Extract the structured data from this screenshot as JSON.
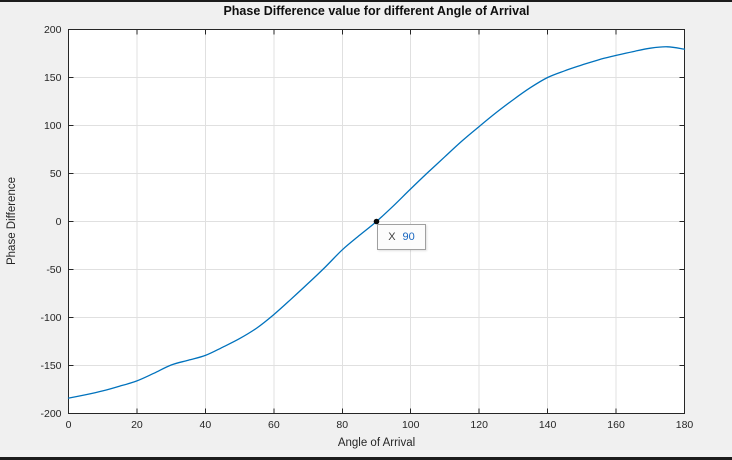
{
  "figure": {
    "background_color": "#f0f0f0",
    "plot_background_color": "#ffffff",
    "axis_color": "#262626",
    "grid_color": "#e0e0e0",
    "window_edge_color": "#1c1c1c"
  },
  "chart_data": {
    "type": "line",
    "title": "Phase Difference value for different Angle of Arrival",
    "xlabel": "Angle of Arrival",
    "ylabel": "Phase Difference",
    "xlim": [
      0,
      180
    ],
    "ylim": [
      -200,
      200
    ],
    "x_ticks": [
      0,
      20,
      40,
      60,
      80,
      100,
      120,
      140,
      160,
      180
    ],
    "y_ticks": [
      -200,
      -150,
      -100,
      -50,
      0,
      50,
      100,
      150,
      200
    ],
    "grid": true,
    "legend": false,
    "series": [
      {
        "name": "Phase Difference",
        "color": "#0072BD",
        "x": [
          0,
          5,
          10,
          15,
          20,
          25,
          30,
          35,
          40,
          45,
          50,
          55,
          60,
          65,
          70,
          75,
          80,
          85,
          90,
          95,
          100,
          105,
          110,
          115,
          120,
          125,
          130,
          135,
          140,
          145,
          150,
          155,
          160,
          165,
          170,
          175,
          180
        ],
        "y": [
          -184,
          -180.5,
          -176.5,
          -171.5,
          -166,
          -158,
          -149.5,
          -144.5,
          -139.5,
          -131,
          -122,
          -111,
          -97,
          -81,
          -64.5,
          -47.5,
          -29.5,
          -14.5,
          0,
          16.5,
          34,
          51,
          67.5,
          84,
          99,
          113.5,
          127,
          139.5,
          150,
          157,
          163,
          168.5,
          173,
          177,
          180.5,
          182,
          179.5
        ]
      }
    ],
    "datatip": {
      "x": 90,
      "y": 0,
      "x_label": "X",
      "x_value": "90",
      "marker_color": "#0a0a0a",
      "value_color": "#1665c0"
    }
  }
}
